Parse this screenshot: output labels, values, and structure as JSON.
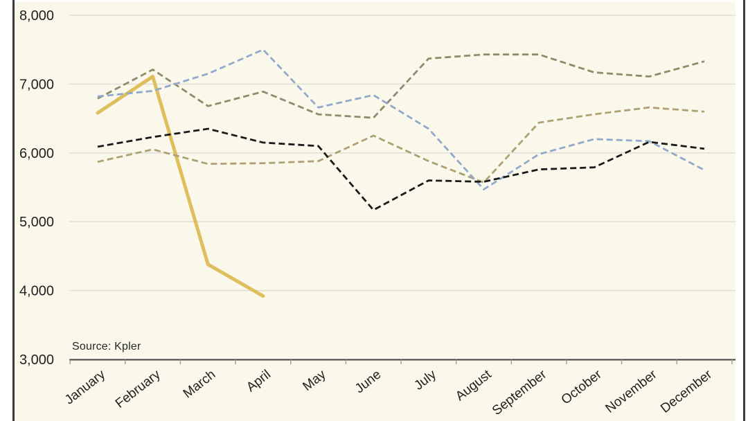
{
  "page": {
    "background_color": "#ffffff",
    "panel_color": "#faf8eb",
    "frame_color": "#3b3b3b"
  },
  "chart_data": {
    "type": "line",
    "title": "",
    "source": "Source: Kpler",
    "categories": [
      "January",
      "February",
      "March",
      "April",
      "May",
      "June",
      "July",
      "August",
      "September",
      "October",
      "November",
      "December"
    ],
    "series": [
      {
        "name": "solid-gold-line",
        "color": "#dcb951",
        "line_style": "solid",
        "stroke_width": 5,
        "values": [
          6580,
          7110,
          4380,
          3920,
          null,
          null,
          null,
          null,
          null,
          null,
          null,
          null
        ]
      },
      {
        "name": "dashed-tan-line",
        "color": "#ada173",
        "line_style": "dashed",
        "stroke_width": 2.8,
        "values": [
          5870,
          6050,
          5840,
          5850,
          5880,
          6250,
          5880,
          5570,
          6440,
          6560,
          6660,
          6600
        ]
      },
      {
        "name": "dashed-olive-line",
        "color": "#908b6a",
        "line_style": "dashed",
        "stroke_width": 2.8,
        "values": [
          6790,
          7210,
          6680,
          6890,
          6560,
          6510,
          7370,
          7430,
          7430,
          7170,
          7110,
          7330
        ]
      },
      {
        "name": "dashed-blue-line",
        "color": "#93a9cb",
        "line_style": "dashed",
        "stroke_width": 2.8,
        "values": [
          6820,
          6900,
          7150,
          7500,
          6660,
          6840,
          6350,
          5470,
          5980,
          6200,
          6170,
          5750
        ]
      },
      {
        "name": "dashed-black-line",
        "color": "#1a1a1a",
        "line_style": "dashed",
        "stroke_width": 2.8,
        "values": [
          6090,
          6230,
          6350,
          6150,
          6100,
          5170,
          5600,
          5580,
          5760,
          5790,
          6160,
          6060
        ]
      }
    ],
    "ylim": [
      3000,
      8000
    ],
    "ytick_step": 1000,
    "ytick_labels": [
      "3,000",
      "4,000",
      "5,000",
      "6,000",
      "7,000",
      "8,000"
    ],
    "xlabel": "",
    "ylabel": "",
    "grid": "horizontal",
    "legend": "none",
    "x_label_rotation_deg": -38,
    "style": {
      "gridline_color": "#e2e0d5",
      "axis_color": "#3f3f3f",
      "tick_color": "#a6a396",
      "text_color": "#1f1f1f"
    }
  }
}
